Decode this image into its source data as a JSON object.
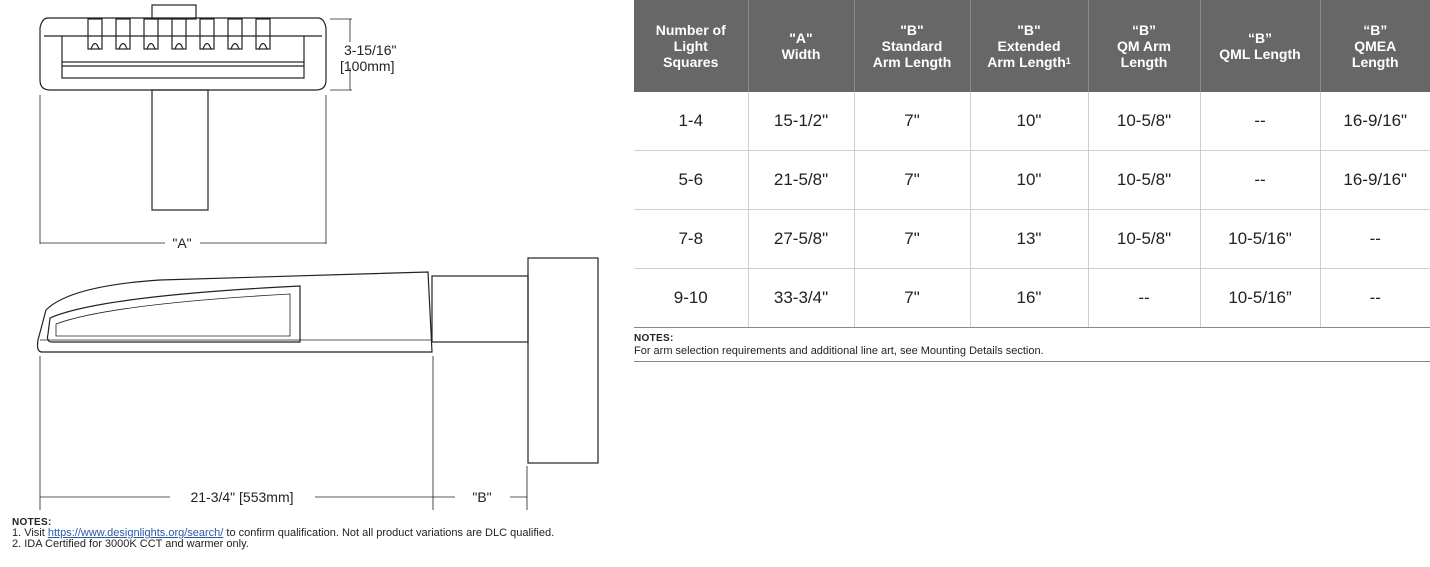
{
  "drawing": {
    "height_label": "3-15/16\"",
    "height_metric": "[100mm]",
    "width_label": "\"A\"",
    "length_label": "21-3/4\" [553mm]",
    "arm_label": "\"B\""
  },
  "drawing_notes": {
    "heading": "NOTES:",
    "note1_prefix": "1. Visit ",
    "note1_link": "https://www.designlights.org/search/",
    "note1_suffix": " to confirm qualification. Not all product variations are DLC qualified.",
    "note2": "2. IDA Certified for 3000K CCT and warmer only."
  },
  "table": {
    "headers": [
      [
        "Number of",
        "Light",
        "Squares"
      ],
      [
        "\"A\"",
        "Width"
      ],
      [
        "\"B\"",
        "Standard",
        "Arm Length"
      ],
      [
        "\"B\"",
        "Extended",
        "Arm Length"
      ],
      [
        "“B”",
        "QM Arm",
        "Length"
      ],
      [
        "“B”",
        "QML Length"
      ],
      [
        "“B”",
        "QMEA",
        "Length"
      ]
    ],
    "header_footnote": "1",
    "rows": [
      [
        "1-4",
        "15-1/2\"",
        "7\"",
        "10\"",
        "10-5/8\"",
        "--",
        "16-9/16\""
      ],
      [
        "5-6",
        "21-5/8\"",
        "7\"",
        "10\"",
        "10-5/8\"",
        "--",
        "16-9/16\""
      ],
      [
        "7-8",
        "27-5/8\"",
        "7\"",
        "13\"",
        "10-5/8\"",
        "10-5/16\"",
        "--"
      ],
      [
        "9-10",
        "33-3/4\"",
        "7\"",
        "16\"",
        "--",
        "10-5/16”",
        "--"
      ]
    ],
    "notes_heading": "NOTES:",
    "notes_text": "For arm selection requirements and additional line art, see Mounting Details section."
  }
}
